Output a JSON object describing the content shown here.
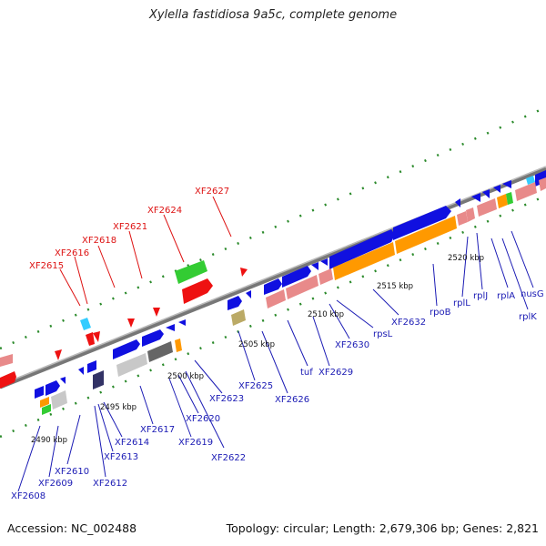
{
  "title": "Xylella fastidiosa 9a5c, complete genome",
  "footer": {
    "accession": "Accession: NC_002488",
    "summary": "Topology: circular; Length: 2,679,306 bp; Genes: 2,821"
  },
  "colors": {
    "backbone": "#8a8a8a",
    "blue_gene": "#1010e0",
    "pink_gene": "#e88a8a",
    "orange_gene": "#ff9900",
    "green_gene": "#33cc33",
    "red_gene": "#ee1111",
    "red_label": "#dd1111",
    "blue_label": "#1a1ab4",
    "tick": "#2a8a2a"
  },
  "scale_labels": [
    "2490 kbp",
    "2495 kbp",
    "2500 kbp",
    "2505 kbp",
    "2510 kbp",
    "2515 kbp",
    "2520 kbp"
  ],
  "blue_labels": [
    "XF2608",
    "XF2609",
    "XF2610",
    "XF2612",
    "XF2613",
    "XF2614",
    "XF2617",
    "XF2619",
    "XF2620",
    "XF2622",
    "XF2623",
    "XF2625",
    "XF2626",
    "tuf",
    "XF2629",
    "XF2630",
    "rpsL",
    "XF2632",
    "rpoB",
    "rplL",
    "rplJ",
    "rplA",
    "rplK",
    "nusG"
  ],
  "red_labels": [
    "XF2615",
    "XF2616",
    "XF2618",
    "XF2621",
    "XF2624",
    "XF2627"
  ]
}
